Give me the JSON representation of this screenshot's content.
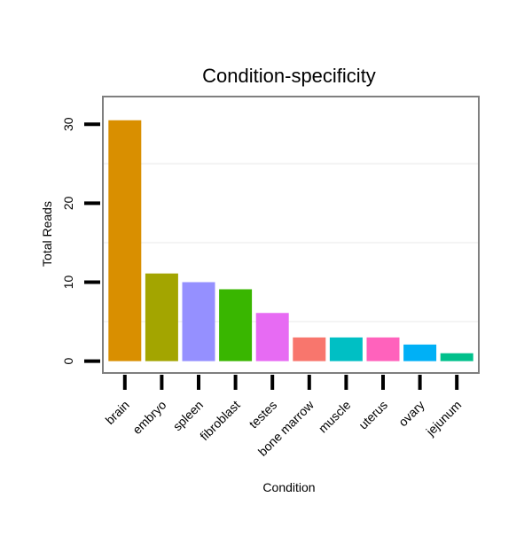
{
  "chart_data": {
    "type": "bar",
    "title": "Condition-specificity",
    "xlabel": "Condition",
    "ylabel": "Total Reads",
    "categories": [
      "brain",
      "embryo",
      "spleen",
      "fibroblast",
      "testes",
      "bone marrow",
      "muscle",
      "uterus",
      "ovary",
      "jejunum"
    ],
    "values": [
      30.5,
      11.1,
      10.0,
      9.1,
      6.1,
      3.0,
      3.0,
      3.0,
      2.1,
      1.0
    ],
    "colors": [
      "#d98f00",
      "#a3a500",
      "#9590ff",
      "#39b600",
      "#e76bf3",
      "#f8766d",
      "#00bfc4",
      "#ff62bc",
      "#00b0f6",
      "#00c08b"
    ],
    "ylim": [
      -1.5,
      33.5
    ],
    "yticks": [
      0,
      10,
      20,
      30
    ],
    "grid": "minor horizontal lines only, very faint",
    "legend": "none"
  }
}
